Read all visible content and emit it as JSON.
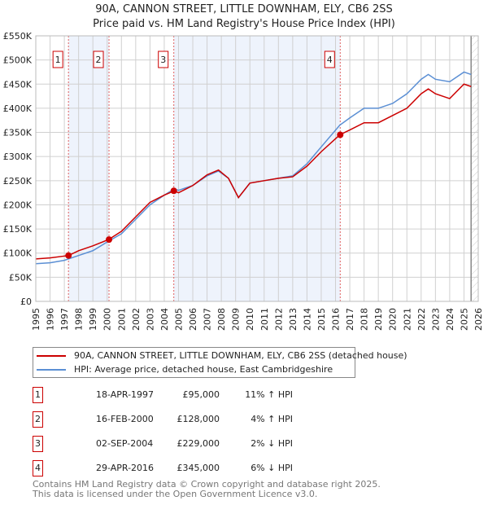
{
  "chart_data": {
    "type": "line",
    "title": "90A, CANNON STREET, LITTLE DOWNHAM, ELY, CB6 2SS",
    "subtitle": "Price paid vs. HM Land Registry's House Price Index (HPI)",
    "xlim": [
      1995,
      2026
    ],
    "ylim": [
      0,
      550000
    ],
    "x_ticks": [
      "1995",
      "1996",
      "1997",
      "1998",
      "1999",
      "2000",
      "2001",
      "2002",
      "2003",
      "2004",
      "2005",
      "2006",
      "2007",
      "2008",
      "2009",
      "2010",
      "2011",
      "2012",
      "2013",
      "2014",
      "2015",
      "2016",
      "2017",
      "2018",
      "2019",
      "2020",
      "2021",
      "2022",
      "2023",
      "2024",
      "2025",
      "2026"
    ],
    "y_ticks": [
      {
        "v": 0,
        "label": "£0"
      },
      {
        "v": 50000,
        "label": "£50K"
      },
      {
        "v": 100000,
        "label": "£100K"
      },
      {
        "v": 150000,
        "label": "£150K"
      },
      {
        "v": 200000,
        "label": "£200K"
      },
      {
        "v": 250000,
        "label": "£250K"
      },
      {
        "v": 300000,
        "label": "£300K"
      },
      {
        "v": 350000,
        "label": "£350K"
      },
      {
        "v": 400000,
        "label": "£400K"
      },
      {
        "v": 450000,
        "label": "£450K"
      },
      {
        "v": 500000,
        "label": "£500K"
      },
      {
        "v": 550000,
        "label": "£550K"
      }
    ],
    "grid": true,
    "legend_placement": "below",
    "series": [
      {
        "name": "90A, CANNON STREET, LITTLE DOWNHAM, ELY, CB6 2SS (detached house)",
        "color": "#cc0000",
        "x": [
          1995,
          1996,
          1997.3,
          1998,
          1999,
          2000.1,
          2001,
          2002,
          2003,
          2004,
          2004.7,
          2005,
          2006,
          2007,
          2007.8,
          2008.5,
          2009.2,
          2010,
          2011,
          2012,
          2013,
          2014,
          2015,
          2016.3,
          2017,
          2018,
          2019,
          2020,
          2021,
          2022,
          2022.5,
          2023,
          2024,
          2025,
          2025.5
        ],
        "y": [
          88000,
          90000,
          95000,
          105000,
          115000,
          128000,
          145000,
          175000,
          205000,
          220000,
          229000,
          225000,
          240000,
          262000,
          272000,
          255000,
          215000,
          245000,
          250000,
          255000,
          258000,
          280000,
          310000,
          345000,
          355000,
          370000,
          370000,
          385000,
          400000,
          430000,
          440000,
          430000,
          420000,
          450000,
          445000
        ]
      },
      {
        "name": "HPI: Average price, detached house, East Cambridgeshire",
        "color": "#5b8fd4",
        "x": [
          1995,
          1996,
          1997,
          1998,
          1999,
          2000,
          2001,
          2002,
          2003,
          2004,
          2004.7,
          2005,
          2006,
          2007,
          2007.8,
          2008.5,
          2009.2,
          2010,
          2011,
          2012,
          2013,
          2014,
          2015,
          2016.3,
          2017,
          2018,
          2019,
          2020,
          2021,
          2022,
          2022.5,
          2023,
          2024,
          2025,
          2025.5
        ],
        "y": [
          78000,
          80000,
          85000,
          95000,
          105000,
          123000,
          140000,
          170000,
          200000,
          220000,
          233000,
          230000,
          240000,
          260000,
          270000,
          255000,
          215000,
          245000,
          250000,
          255000,
          260000,
          285000,
          320000,
          365000,
          380000,
          400000,
          400000,
          410000,
          430000,
          460000,
          470000,
          460000,
          455000,
          475000,
          470000
        ]
      }
    ],
    "sales": [
      {
        "id": "1",
        "x": 1997.29,
        "price": 95000,
        "date": "18-APR-1997",
        "price_label": "£95,000",
        "hpi": "11% ↑ HPI"
      },
      {
        "id": "2",
        "x": 2000.13,
        "price": 128000,
        "date": "16-FEB-2000",
        "price_label": "£128,000",
        "hpi": "4% ↑ HPI"
      },
      {
        "id": "3",
        "x": 2004.67,
        "price": 229000,
        "date": "02-SEP-2004",
        "price_label": "£229,000",
        "hpi": "2% ↓ HPI"
      },
      {
        "id": "4",
        "x": 2016.33,
        "price": 345000,
        "date": "29-APR-2016",
        "price_label": "£345,000",
        "hpi": "6% ↓ HPI"
      }
    ],
    "forecast_start": 2025.5
  },
  "footer": {
    "line1": "Contains HM Land Registry data © Crown copyright and database right 2025.",
    "line2": "This data is licensed under the Open Government Licence v3.0."
  }
}
